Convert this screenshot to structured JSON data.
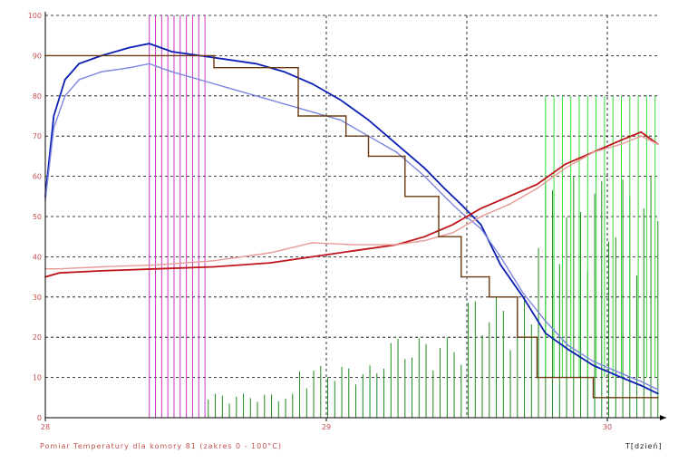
{
  "caption": "Pomiar Temperatury dla komory 81 (zakres 0 - 100°C)",
  "chart_data": {
    "type": "line",
    "xlabel": "T[dzień]",
    "ylabel": "",
    "xlim": [
      28,
      30.18
    ],
    "ylim": [
      0,
      100
    ],
    "x_ticks": [
      "28",
      "29",
      "30"
    ],
    "x_tick_values": [
      28,
      29,
      30
    ],
    "y_ticks": [
      "0",
      "10",
      "20",
      "30",
      "40",
      "50",
      "60",
      "70",
      "80",
      "90",
      "100"
    ],
    "y_tick_values": [
      0,
      10,
      20,
      30,
      40,
      50,
      60,
      70,
      80,
      90,
      100
    ],
    "grid": true,
    "colors": {
      "axis": "#000000",
      "grid": "#000000",
      "tick_label": "#c0504d",
      "blue_dark": "#0a1fb4",
      "blue_light": "#7b86e0",
      "red_dark": "#c0141a",
      "red_light": "#e89a96",
      "brown": "#6b3a10",
      "green_dark": "#1a8a1a",
      "green_light": "#33dd33",
      "magenta": "#cc33cc"
    },
    "series": [
      {
        "color": "#0a1fb4",
        "x": [
          28.0,
          28.03,
          28.07,
          28.12,
          28.2,
          28.3,
          28.37,
          28.45,
          28.55,
          28.65,
          28.75,
          28.85,
          28.95,
          29.05,
          29.15,
          29.25,
          29.35,
          29.42,
          29.48,
          29.55,
          29.62,
          29.7,
          29.78,
          29.86,
          29.95,
          30.05,
          30.12,
          30.18
        ],
        "y": [
          55,
          75,
          84,
          88,
          90,
          92,
          93,
          91,
          90,
          89,
          88,
          86,
          83,
          79,
          74,
          68,
          62,
          57,
          53,
          48,
          38,
          30,
          21,
          17,
          13,
          10,
          8,
          6
        ]
      },
      {
        "color": "#7b86e0",
        "x": [
          28.0,
          28.03,
          28.07,
          28.12,
          28.2,
          28.3,
          28.37,
          28.45,
          28.55,
          28.65,
          28.75,
          28.85,
          28.95,
          29.05,
          29.15,
          29.25,
          29.35,
          29.42,
          29.48,
          29.55,
          29.62,
          29.7,
          29.78,
          29.86,
          29.95,
          30.05,
          30.12,
          30.18
        ],
        "y": [
          54,
          72,
          80,
          84,
          86,
          87,
          88,
          86,
          84,
          82,
          80,
          78,
          76,
          74,
          70,
          66,
          60,
          55,
          51,
          47,
          40,
          31,
          24,
          18,
          14,
          11,
          9,
          7
        ]
      },
      {
        "color": "#c0141a",
        "x": [
          28.0,
          28.05,
          28.2,
          28.4,
          28.6,
          28.8,
          28.95,
          29.1,
          29.25,
          29.35,
          29.45,
          29.55,
          29.65,
          29.75,
          29.85,
          29.95,
          30.05,
          30.12,
          30.18
        ],
        "y": [
          35,
          36,
          36.5,
          37,
          37.5,
          38.5,
          40,
          41.5,
          43,
          45,
          48,
          52,
          55,
          58,
          63,
          66,
          69,
          71,
          68
        ]
      },
      {
        "color": "#e89a96",
        "x": [
          28.0,
          28.05,
          28.2,
          28.4,
          28.6,
          28.8,
          28.95,
          29.1,
          29.25,
          29.35,
          29.45,
          29.55,
          29.65,
          29.75,
          29.85,
          29.95,
          30.05,
          30.12,
          30.18
        ],
        "y": [
          37,
          37,
          37.5,
          38,
          39,
          41,
          43.5,
          43,
          43,
          44,
          46,
          50,
          53,
          57,
          62,
          66,
          68,
          70,
          68
        ]
      },
      {
        "color": "#6b3a10",
        "x": [
          28.0,
          28.6,
          28.6,
          28.9,
          28.9,
          29.07,
          29.07,
          29.15,
          29.15,
          29.28,
          29.28,
          29.4,
          29.4,
          29.48,
          29.48,
          29.58,
          29.58,
          29.68,
          29.68,
          29.75,
          29.75,
          29.95,
          29.95,
          30.18
        ],
        "y": [
          90,
          90,
          87,
          87,
          75,
          75,
          70,
          70,
          65,
          65,
          55,
          55,
          45,
          45,
          35,
          35,
          30,
          30,
          20,
          20,
          10,
          10,
          5,
          5
        ]
      }
    ]
  }
}
